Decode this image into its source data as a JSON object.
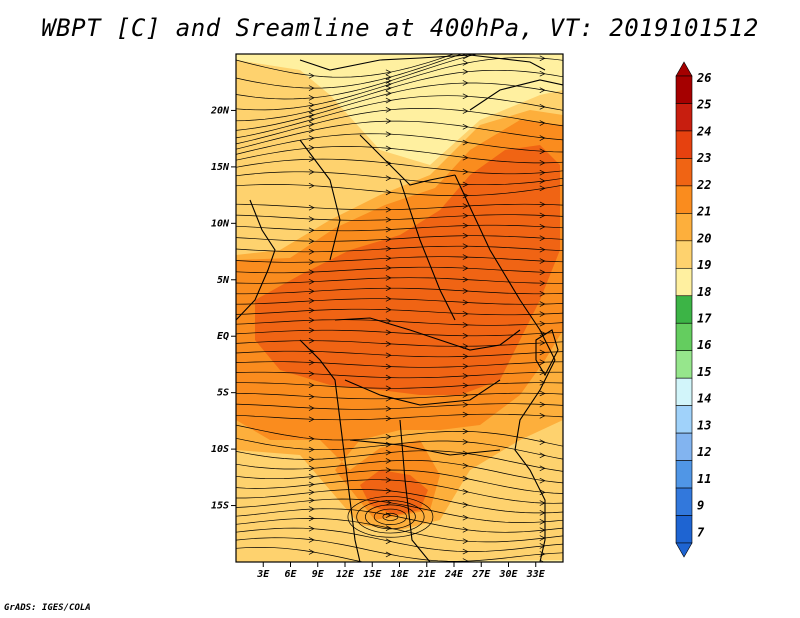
{
  "title": "WBPT [C] and Sreamline at 400hPa, VT: 2019101512",
  "credit": "GrADS: IGES/COLA",
  "map": {
    "lon_range": [
      0,
      36
    ],
    "lat_range": [
      -20,
      25
    ],
    "lon_ticks": [
      "3E",
      "6E",
      "9E",
      "12E",
      "15E",
      "18E",
      "21E",
      "24E",
      "27E",
      "30E",
      "33E"
    ],
    "lat_ticks": [
      "20N",
      "15N",
      "10N",
      "5N",
      "EQ",
      "5S",
      "10S",
      "15S"
    ]
  },
  "colorbar": {
    "levels": [
      "26",
      "25",
      "24",
      "23",
      "22",
      "21",
      "20",
      "19",
      "18",
      "17",
      "16",
      "15",
      "14",
      "13",
      "12",
      "11",
      "9",
      "7"
    ],
    "colors": [
      "#a50000",
      "#c81e0f",
      "#e6410f",
      "#f06414",
      "#fa8c1e",
      "#fdaf3c",
      "#fed26e",
      "#fff0a0",
      "#3cb446",
      "#64cd5f",
      "#96e68c",
      "#d2f5fa",
      "#a0d2fa",
      "#82b4f0",
      "#5096e6",
      "#3278dc",
      "#1e64d2"
    ]
  }
}
